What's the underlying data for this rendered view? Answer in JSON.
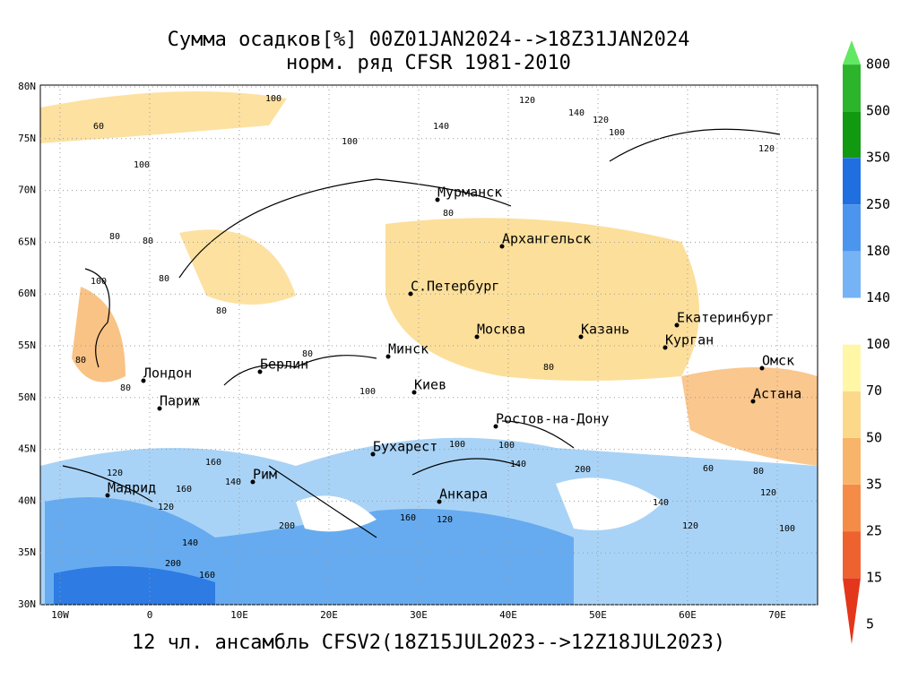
{
  "header": {
    "title": "Сумма осадков[%] 00Z01JAN2024-->18Z31JAN2024",
    "subtitle": "норм. ряд CFSR 1981-2010"
  },
  "footer": "12 чл. ансамбль CFSV2(18Z15JUL2023-->12Z18JUL2023)",
  "lat_labels": [
    "80N",
    "75N",
    "70N",
    "65N",
    "60N",
    "55N",
    "50N",
    "45N",
    "40N",
    "35N",
    "30N"
  ],
  "lon_labels": [
    "10W",
    "0",
    "10E",
    "20E",
    "30E",
    "40E",
    "50E",
    "60E",
    "70E"
  ],
  "cities": [
    "Мурманск",
    "Архангельск",
    "С.Петербург",
    "Москва",
    "Казань",
    "Екатеринбург",
    "Курган",
    "Омск",
    "Астана",
    "Минск",
    "Берлин",
    "Лондон",
    "Париж",
    "Киев",
    "Ростов-на-Дону",
    "Бухарест",
    "Рим",
    "Мадрид",
    "Анкара"
  ],
  "contour_labels": [
    "100",
    "60",
    "140",
    "120",
    "140",
    "120",
    "100",
    "100",
    "100",
    "120",
    "80",
    "80",
    "80",
    "100",
    "80",
    "80",
    "100",
    "80",
    "80",
    "80",
    "80",
    "100",
    "100",
    "120",
    "160",
    "200",
    "160",
    "140",
    "120",
    "140",
    "200",
    "160",
    "120",
    "140",
    "160",
    "200",
    "140",
    "120",
    "60",
    "80",
    "120",
    "100"
  ],
  "colorbar": {
    "levels": [
      800,
      500,
      350,
      250,
      180,
      140,
      100,
      70,
      50,
      35,
      25,
      15,
      5
    ],
    "colors": [
      "#62e862",
      "#2cb42c",
      "#119a11",
      "#1f6fe0",
      "#4c95ee",
      "#76b3f6",
      "#ffffff",
      "#fff7a6",
      "#fcd98a",
      "#f8b468",
      "#f48c48",
      "#ee6230",
      "#e3361a"
    ]
  }
}
